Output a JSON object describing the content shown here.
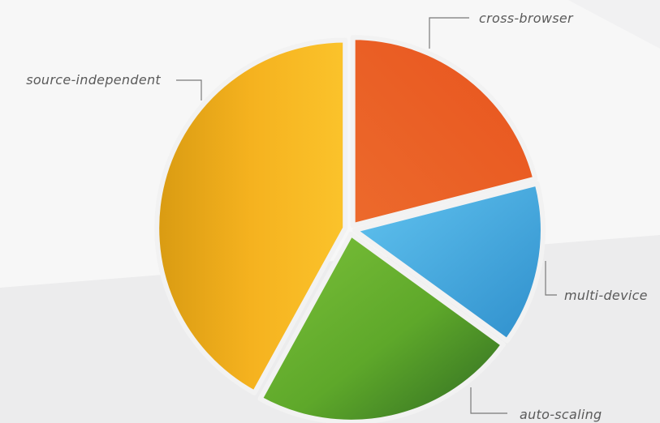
{
  "chart_data": {
    "type": "pie",
    "title": "",
    "slices": [
      {
        "label": "cross-browser",
        "value": 21,
        "color": "#e8541e"
      },
      {
        "label": "multi-device",
        "value": 14,
        "color": "#3fa7e0"
      },
      {
        "label": "auto-scaling",
        "value": 23,
        "color": "#5ea82a"
      },
      {
        "label": "source-independent",
        "value": 42,
        "color": "#f9b81f"
      }
    ],
    "legend": "none",
    "exploded": true
  },
  "colors": {
    "background_top": "#f7f7f7",
    "background_bottom": "#e3e3e5",
    "leader_line": "#7a7a7a"
  }
}
